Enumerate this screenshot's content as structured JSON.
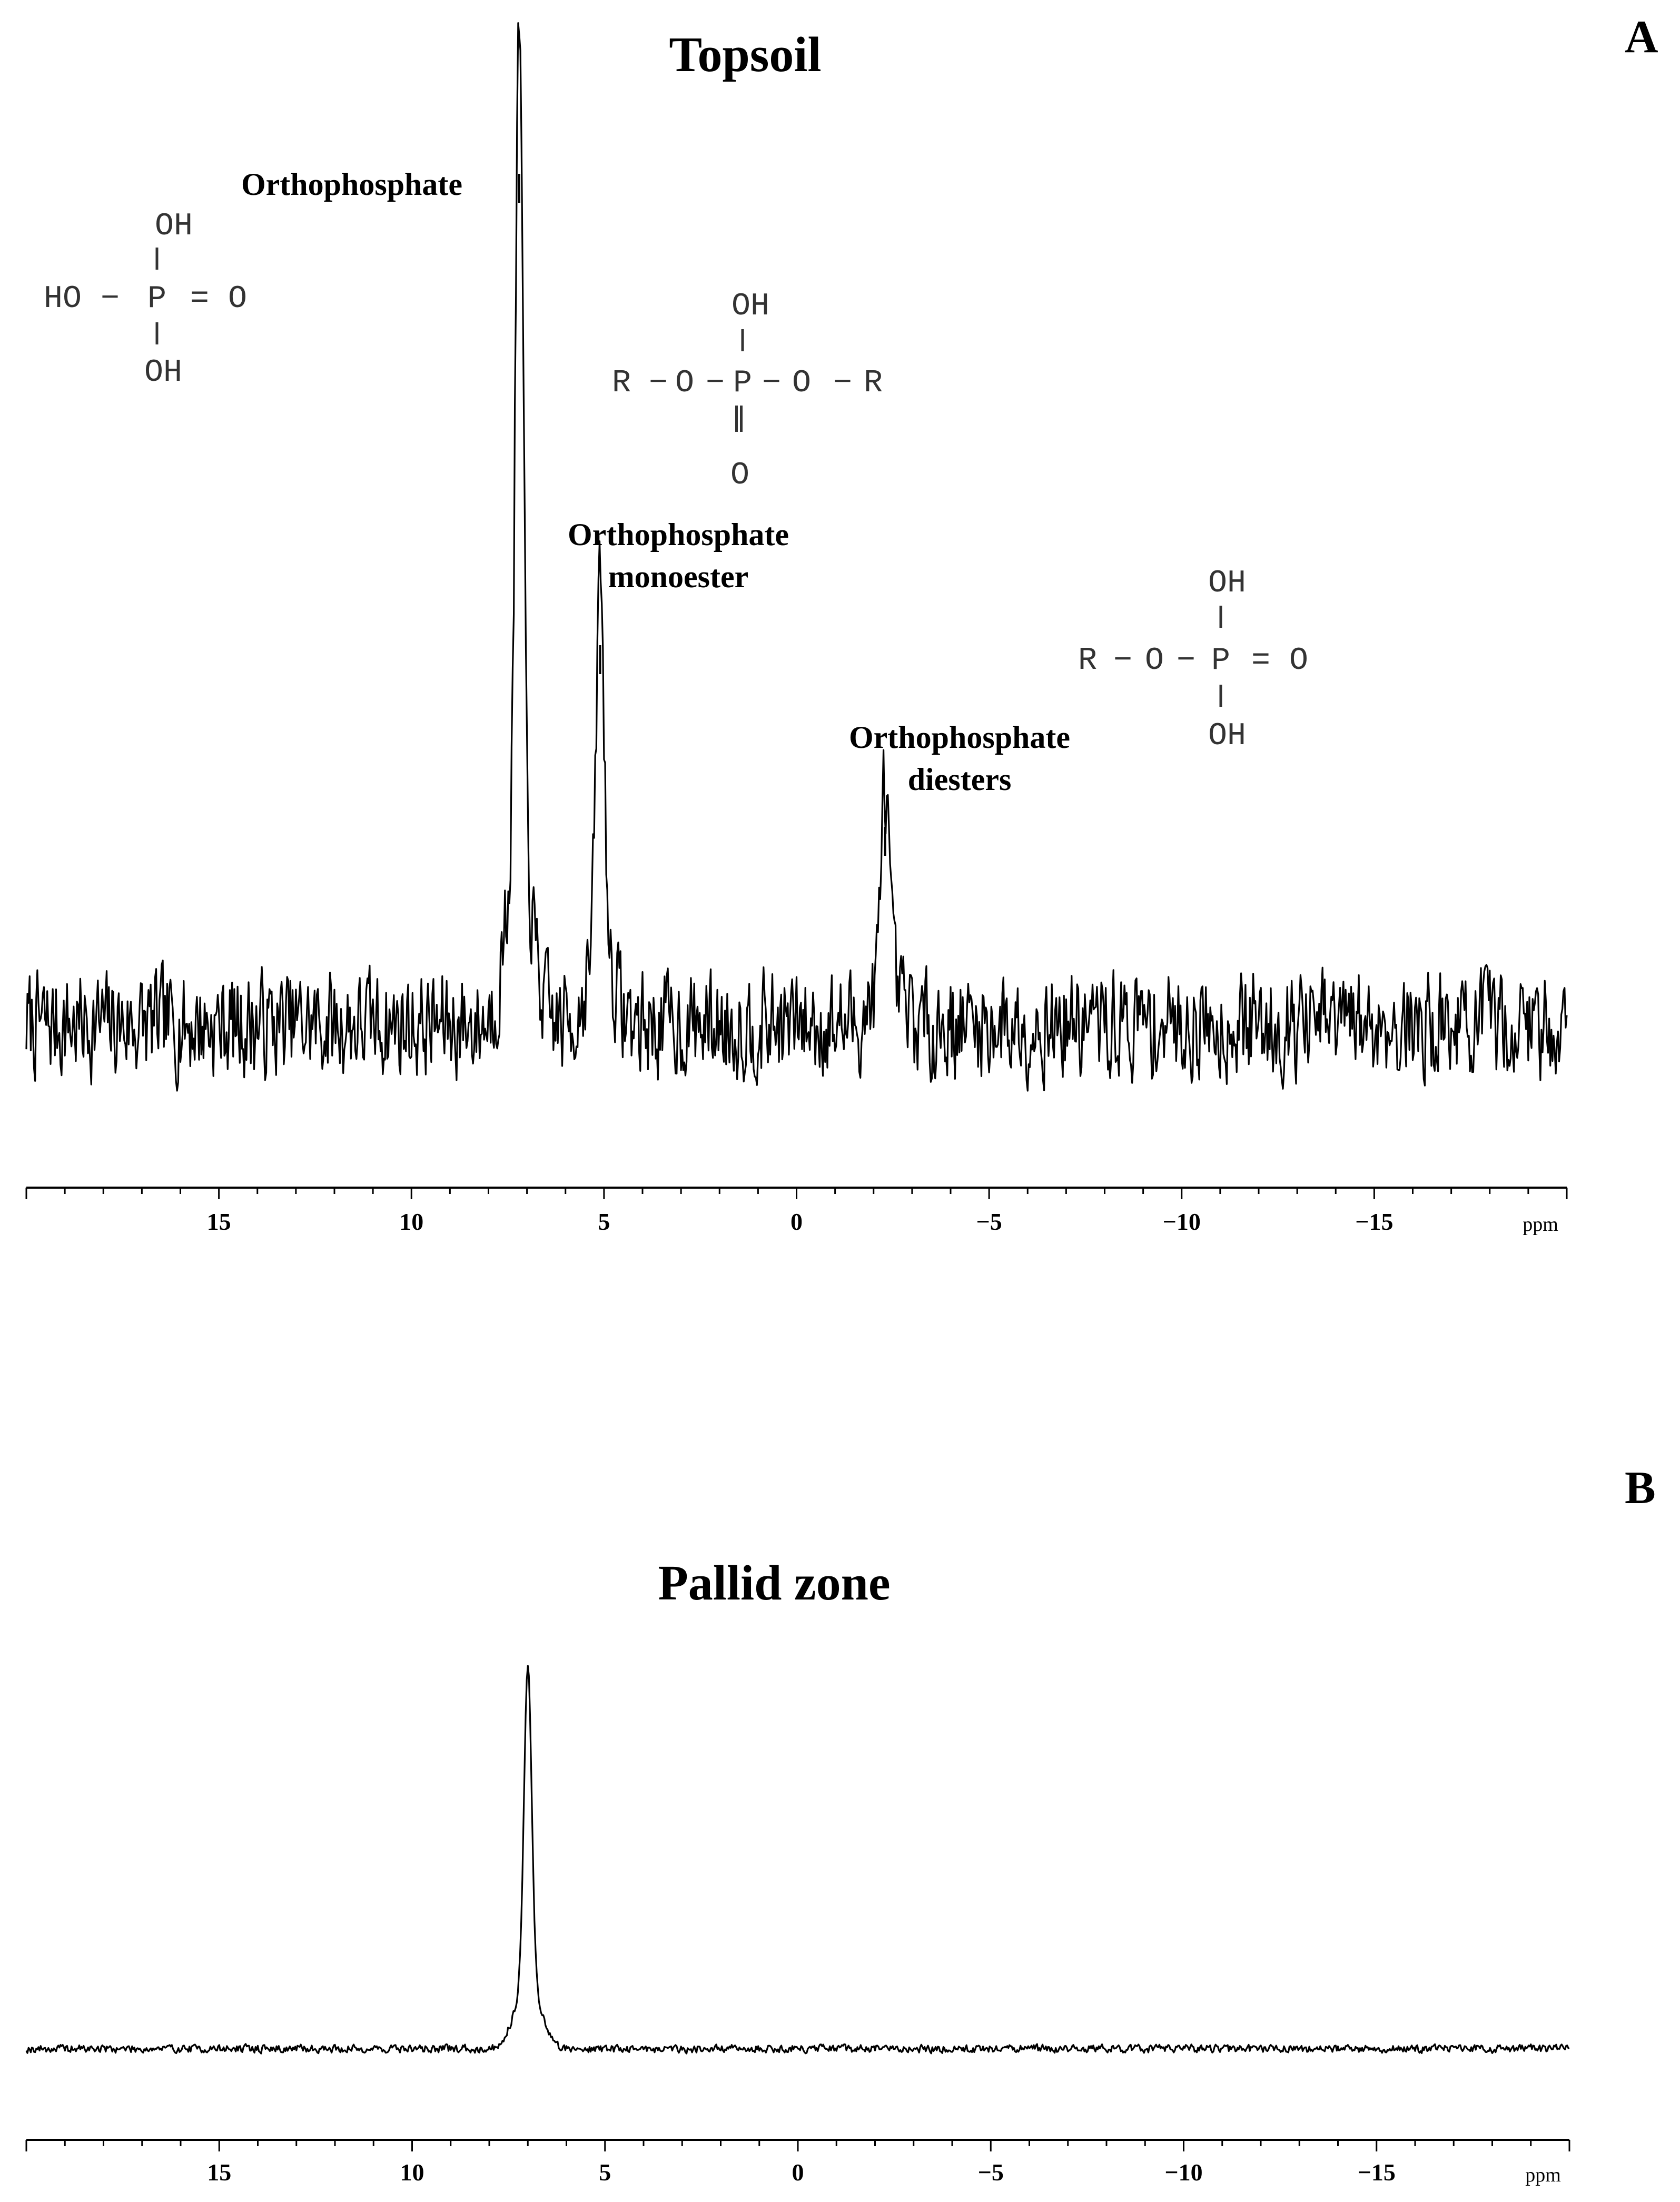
{
  "panels": [
    {
      "letter": "A",
      "title": "Topsoil",
      "peak_labels": {
        "orthophosphate": "Orthophosphate",
        "monoester_line1": "Orthophosphate",
        "monoester_line2": "monoester",
        "diesters_line1": "Orthophosphate",
        "diesters_line2": "diesters"
      },
      "structures": {
        "orthophosphate": {
          "top": "OH",
          "left": "HO",
          "center": "P",
          "right": "O",
          "bottom": "OH"
        },
        "diester": {
          "top": "OH",
          "left": "R",
          "o_left": "O",
          "center": "P",
          "o_right": "O",
          "right": "R",
          "bottom": "O"
        },
        "monoester": {
          "top": "OH",
          "left": "R",
          "o_left": "O",
          "center": "P",
          "right": "O",
          "bottom": "OH"
        }
      }
    },
    {
      "letter": "B",
      "title": "Pallid zone"
    }
  ],
  "chart_data": [
    {
      "type": "line",
      "title": "Topsoil",
      "panel": "A",
      "xlabel": "ppm",
      "xlim": [
        20,
        -20
      ],
      "x_reversed": true,
      "xticks": [
        15,
        10,
        5,
        0,
        -5,
        -10,
        -15
      ],
      "xtick_labels": [
        "15",
        "10",
        "5",
        "0",
        "−5",
        "−10",
        "−15"
      ],
      "y_units": "relative intensity (arbitrary)",
      "baseline": 0,
      "noise_amplitude": 0.09,
      "peaks": [
        {
          "ppm": 7.2,
          "height": 1.0,
          "label": "Orthophosphate"
        },
        {
          "ppm": 5.1,
          "height": 0.46,
          "label": "Orthophosphate monoester"
        },
        {
          "ppm": -2.3,
          "height": 0.25,
          "label": "Orthophosphate diesters"
        }
      ]
    },
    {
      "type": "line",
      "title": "Pallid zone",
      "panel": "B",
      "xlabel": "ppm",
      "xlim": [
        20,
        -20
      ],
      "x_reversed": true,
      "xticks": [
        15,
        10,
        5,
        0,
        -5,
        -10,
        -15
      ],
      "xtick_labels": [
        "15",
        "10",
        "5",
        "0",
        "−5",
        "−10",
        "−15"
      ],
      "y_units": "relative intensity (arbitrary)",
      "baseline": 0,
      "noise_amplitude": 0.03,
      "peaks": [
        {
          "ppm": 7.0,
          "height": 1.0,
          "label": ""
        }
      ]
    }
  ]
}
